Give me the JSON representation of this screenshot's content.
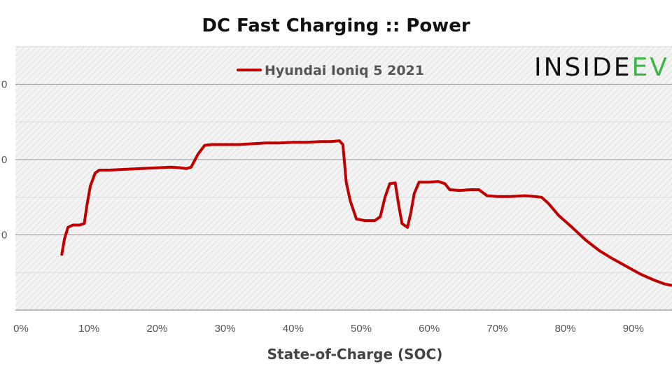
{
  "chart_data": {
    "type": "line",
    "title": "DC Fast Charging :: Power",
    "xlabel": "State-of-Charge  (SOC)",
    "ylabel": "",
    "xlim": [
      0,
      100
    ],
    "x_ticks": [
      "0%",
      "10%",
      "20%",
      "30%",
      "40%",
      "50%",
      "60%",
      "70%",
      "80%",
      "90%"
    ],
    "y_ticks": [
      "0",
      "0",
      "0"
    ],
    "grid": true,
    "legend": "top-center",
    "series": [
      {
        "name": "Hyundai Ioniq 5 2021",
        "color": "#c00000",
        "points": [
          [
            6.0,
            0.74
          ],
          [
            6.4,
            0.95
          ],
          [
            6.9,
            1.1
          ],
          [
            7.6,
            1.13
          ],
          [
            8.6,
            1.13
          ],
          [
            9.3,
            1.15
          ],
          [
            9.7,
            1.4
          ],
          [
            10.2,
            1.65
          ],
          [
            10.9,
            1.82
          ],
          [
            11.5,
            1.86
          ],
          [
            13,
            1.86
          ],
          [
            15,
            1.87
          ],
          [
            17.5,
            1.88
          ],
          [
            20,
            1.89
          ],
          [
            22,
            1.9
          ],
          [
            23.5,
            1.89
          ],
          [
            24.3,
            1.88
          ],
          [
            25.0,
            1.9
          ],
          [
            26.0,
            2.07
          ],
          [
            27.0,
            2.19
          ],
          [
            28,
            2.2
          ],
          [
            30,
            2.2
          ],
          [
            32,
            2.2
          ],
          [
            34,
            2.21
          ],
          [
            36,
            2.22
          ],
          [
            38,
            2.22
          ],
          [
            40,
            2.23
          ],
          [
            42,
            2.23
          ],
          [
            44,
            2.24
          ],
          [
            45.5,
            2.24
          ],
          [
            46.8,
            2.25
          ],
          [
            47.3,
            2.2
          ],
          [
            47.8,
            1.7
          ],
          [
            48.4,
            1.45
          ],
          [
            49.3,
            1.21
          ],
          [
            50.5,
            1.19
          ],
          [
            52.0,
            1.19
          ],
          [
            52.8,
            1.24
          ],
          [
            53.5,
            1.5
          ],
          [
            54.2,
            1.68
          ],
          [
            55.0,
            1.69
          ],
          [
            55.5,
            1.4
          ],
          [
            56.0,
            1.15
          ],
          [
            56.8,
            1.1
          ],
          [
            57.3,
            1.3
          ],
          [
            57.8,
            1.55
          ],
          [
            58.5,
            1.7
          ],
          [
            60,
            1.7
          ],
          [
            61.3,
            1.71
          ],
          [
            62.3,
            1.68
          ],
          [
            63.0,
            1.6
          ],
          [
            64.5,
            1.59
          ],
          [
            66,
            1.6
          ],
          [
            67.3,
            1.6
          ],
          [
            68.5,
            1.52
          ],
          [
            70,
            1.51
          ],
          [
            72,
            1.51
          ],
          [
            74,
            1.52
          ],
          [
            75.5,
            1.51
          ],
          [
            76.5,
            1.5
          ],
          [
            77.5,
            1.42
          ],
          [
            79,
            1.26
          ],
          [
            81,
            1.1
          ],
          [
            83,
            0.93
          ],
          [
            85,
            0.79
          ],
          [
            87,
            0.68
          ],
          [
            89,
            0.58
          ],
          [
            91,
            0.48
          ],
          [
            93,
            0.4
          ],
          [
            94.5,
            0.35
          ],
          [
            95.5,
            0.33
          ],
          [
            98,
            0.33
          ]
        ]
      }
    ],
    "logo": "INSIDEEV"
  }
}
